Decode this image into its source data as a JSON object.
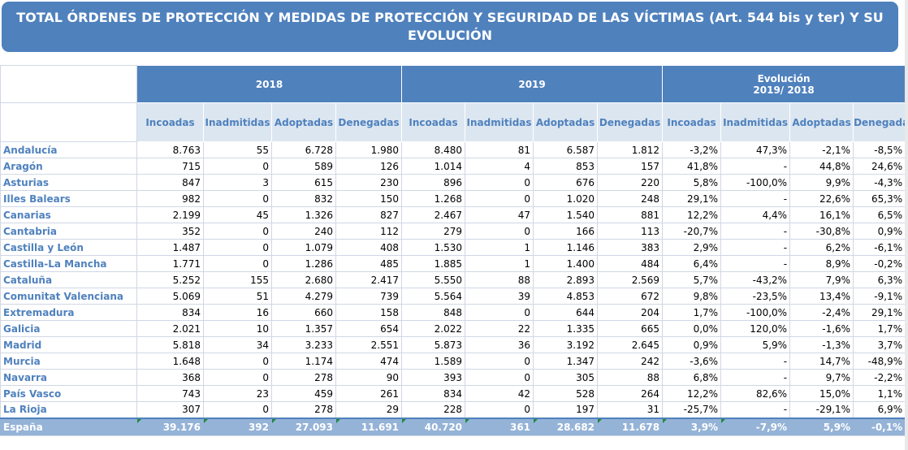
{
  "title": "TOTAL ÓRDENES DE PROTECCIÓN Y MEDIDAS DE PROTECCIÓN Y SEGURIDAD DE LAS VÍCTIMAS (Art. 544 bis y ter) Y SU EVOLUCIÓN",
  "groups": {
    "y2018": "2018",
    "y2019": "2019",
    "evolution_line1": "Evolución",
    "evolution_line2": "2019/ 2018"
  },
  "columns": [
    "Incoadas",
    "Inadmitidas",
    "Adoptadas",
    "Denegadas",
    "Incoadas",
    "Inadmitidas",
    "Adoptadas",
    "Denegadas",
    "Incoadas",
    "Inadmitidas",
    "Adoptadas",
    "Denegadas"
  ],
  "rows": [
    {
      "name": "Andalucía",
      "values": [
        "8.763",
        "55",
        "6.728",
        "1.980",
        "8.480",
        "81",
        "6.587",
        "1.812",
        "-3,2%",
        "47,3%",
        "-2,1%",
        "-8,5%"
      ]
    },
    {
      "name": "Aragón",
      "values": [
        "715",
        "0",
        "589",
        "126",
        "1.014",
        "4",
        "853",
        "157",
        "41,8%",
        "-",
        "44,8%",
        "24,6%"
      ]
    },
    {
      "name": "Asturias",
      "values": [
        "847",
        "3",
        "615",
        "230",
        "896",
        "0",
        "676",
        "220",
        "5,8%",
        "-100,0%",
        "9,9%",
        "-4,3%"
      ]
    },
    {
      "name": "Illes Balears",
      "values": [
        "982",
        "0",
        "832",
        "150",
        "1.268",
        "0",
        "1.020",
        "248",
        "29,1%",
        "-",
        "22,6%",
        "65,3%"
      ]
    },
    {
      "name": "Canarias",
      "values": [
        "2.199",
        "45",
        "1.326",
        "827",
        "2.467",
        "47",
        "1.540",
        "881",
        "12,2%",
        "4,4%",
        "16,1%",
        "6,5%"
      ]
    },
    {
      "name": "Cantabria",
      "values": [
        "352",
        "0",
        "240",
        "112",
        "279",
        "0",
        "166",
        "113",
        "-20,7%",
        "-",
        "-30,8%",
        "0,9%"
      ]
    },
    {
      "name": "Castilla y León",
      "values": [
        "1.487",
        "0",
        "1.079",
        "408",
        "1.530",
        "1",
        "1.146",
        "383",
        "2,9%",
        "-",
        "6,2%",
        "-6,1%"
      ]
    },
    {
      "name": "Castilla-La Mancha",
      "values": [
        "1.771",
        "0",
        "1.286",
        "485",
        "1.885",
        "1",
        "1.400",
        "484",
        "6,4%",
        "-",
        "8,9%",
        "-0,2%"
      ]
    },
    {
      "name": "Cataluña",
      "values": [
        "5.252",
        "155",
        "2.680",
        "2.417",
        "5.550",
        "88",
        "2.893",
        "2.569",
        "5,7%",
        "-43,2%",
        "7,9%",
        "6,3%"
      ]
    },
    {
      "name": "Comunitat Valenciana",
      "values": [
        "5.069",
        "51",
        "4.279",
        "739",
        "5.564",
        "39",
        "4.853",
        "672",
        "9,8%",
        "-23,5%",
        "13,4%",
        "-9,1%"
      ]
    },
    {
      "name": "Extremadura",
      "values": [
        "834",
        "16",
        "660",
        "158",
        "848",
        "0",
        "644",
        "204",
        "1,7%",
        "-100,0%",
        "-2,4%",
        "29,1%"
      ]
    },
    {
      "name": "Galicia",
      "values": [
        "2.021",
        "10",
        "1.357",
        "654",
        "2.022",
        "22",
        "1.335",
        "665",
        "0,0%",
        "120,0%",
        "-1,6%",
        "1,7%"
      ]
    },
    {
      "name": "Madrid",
      "values": [
        "5.818",
        "34",
        "3.233",
        "2.551",
        "5.873",
        "36",
        "3.192",
        "2.645",
        "0,9%",
        "5,9%",
        "-1,3%",
        "3,7%"
      ]
    },
    {
      "name": "Murcia",
      "values": [
        "1.648",
        "0",
        "1.174",
        "474",
        "1.589",
        "0",
        "1.347",
        "242",
        "-3,6%",
        "-",
        "14,7%",
        "-48,9%"
      ]
    },
    {
      "name": "Navarra",
      "values": [
        "368",
        "0",
        "278",
        "90",
        "393",
        "0",
        "305",
        "88",
        "6,8%",
        "-",
        "9,7%",
        "-2,2%"
      ]
    },
    {
      "name": "País Vasco",
      "values": [
        "743",
        "23",
        "459",
        "261",
        "834",
        "42",
        "528",
        "264",
        "12,2%",
        "82,6%",
        "15,0%",
        "1,1%"
      ]
    },
    {
      "name": "La Rioja",
      "values": [
        "307",
        "0",
        "278",
        "29",
        "228",
        "0",
        "197",
        "31",
        "-25,7%",
        "-",
        "-29,1%",
        "6,9%"
      ]
    }
  ],
  "total": {
    "name": "España",
    "values": [
      "39.176",
      "392",
      "27.093",
      "11.691",
      "40.720",
      "361",
      "28.682",
      "11.678",
      "3,9%",
      "-7,9%",
      "5,9%",
      "-0,1%"
    ]
  }
}
